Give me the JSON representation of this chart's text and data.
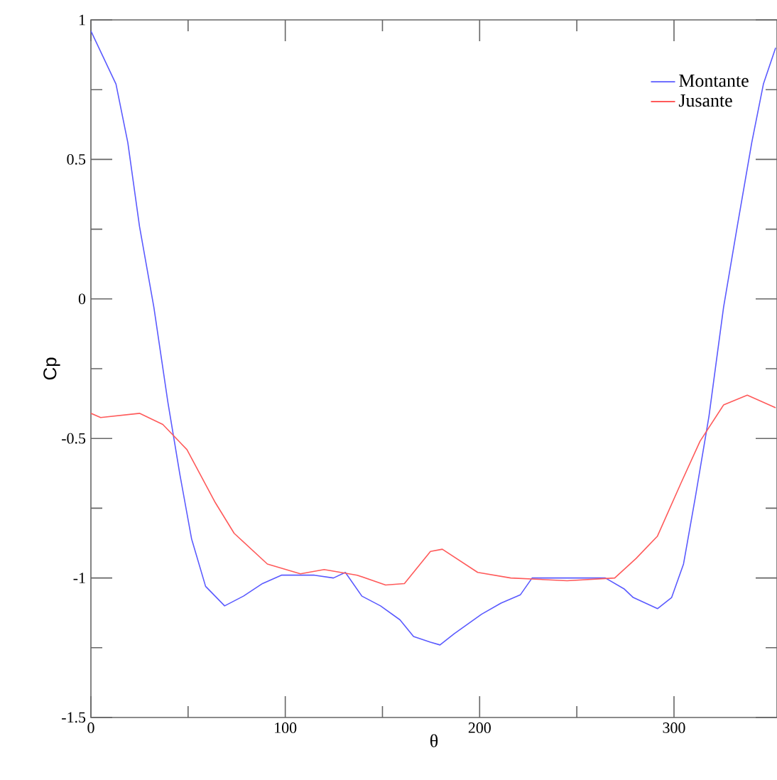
{
  "chart_data": {
    "type": "line",
    "xlabel": "θ",
    "ylabel": "Cp",
    "xlim": [
      0,
      353
    ],
    "ylim": [
      -1.5,
      1
    ],
    "xticks": [
      0,
      100,
      200,
      300
    ],
    "yticks": [
      -1.5,
      -1,
      -0.5,
      0,
      0.5,
      1
    ],
    "legend": "top right",
    "series": [
      {
        "name": "Montante",
        "color": "#5a5aff",
        "x": [
          0,
          12.9,
          19,
          25,
          32.4,
          39.6,
          45.8,
          51.8,
          59,
          68.8,
          78.5,
          88.3,
          98,
          115,
          124.8,
          130.9,
          139.4,
          149,
          159,
          166,
          174.7,
          179.6,
          186.9,
          201,
          211,
          221,
          227,
          245,
          264.7,
          274.5,
          279,
          291.5,
          298.8,
          304.9,
          311,
          318,
          325.5,
          332.8,
          340,
          346,
          352.3
        ],
        "values": [
          0.96,
          0.77,
          0.56,
          0.26,
          -0.03,
          -0.37,
          -0.63,
          -0.86,
          -1.03,
          -1.1,
          -1.065,
          -1.02,
          -0.99,
          -0.99,
          -1.0,
          -0.98,
          -1.065,
          -1.1,
          -1.15,
          -1.21,
          -1.23,
          -1.24,
          -1.2,
          -1.13,
          -1.09,
          -1.06,
          -1.0,
          -1.0,
          -1.0,
          -1.04,
          -1.07,
          -1.11,
          -1.07,
          -0.95,
          -0.71,
          -0.42,
          -0.03,
          0.27,
          0.56,
          0.77,
          0.9
        ]
      },
      {
        "name": "Jusante",
        "color": "#ff5a5a",
        "x": [
          0,
          5,
          25,
          37,
          49.4,
          64,
          73.7,
          90.8,
          107.8,
          120,
          137,
          151.6,
          161.3,
          174.7,
          180.8,
          199,
          216,
          245,
          269.5,
          280.5,
          291.5,
          303.6,
          313.4,
          325.5,
          337.7,
          352.3
        ],
        "values": [
          -0.41,
          -0.425,
          -0.41,
          -0.45,
          -0.54,
          -0.73,
          -0.84,
          -0.95,
          -0.985,
          -0.97,
          -0.99,
          -1.025,
          -1.02,
          -0.905,
          -0.897,
          -0.98,
          -1.0,
          -1.01,
          -1.0,
          -0.93,
          -0.85,
          -0.66,
          -0.51,
          -0.38,
          -0.345,
          -0.39
        ]
      }
    ]
  }
}
